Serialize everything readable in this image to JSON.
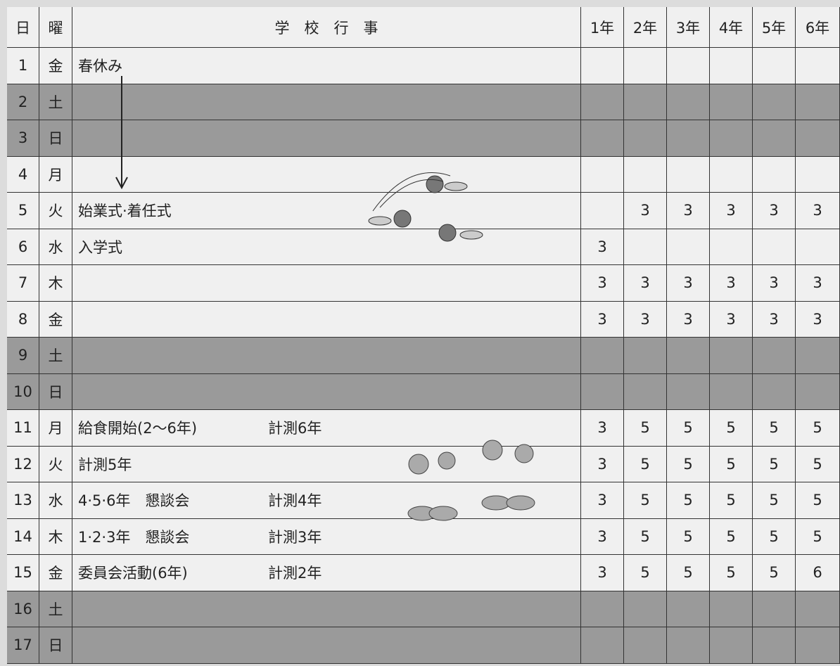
{
  "table": {
    "header": [
      "日",
      "曜",
      "学　校　行　事",
      "1年",
      "2年",
      "3年",
      "4年",
      "5年",
      "6年"
    ],
    "rows": [
      {
        "day": "1",
        "weekday": "金",
        "event": "春休み",
        "note": null,
        "grades": [
          null,
          null,
          null,
          null,
          null,
          null
        ],
        "shaded": false
      },
      {
        "day": "2",
        "weekday": "土",
        "event": null,
        "note": null,
        "grades": [
          null,
          null,
          null,
          null,
          null,
          null
        ],
        "shaded": true
      },
      {
        "day": "3",
        "weekday": "日",
        "event": null,
        "note": null,
        "grades": [
          null,
          null,
          null,
          null,
          null,
          null
        ],
        "shaded": true
      },
      {
        "day": "4",
        "weekday": "月",
        "event": null,
        "note": null,
        "grades": [
          null,
          null,
          null,
          null,
          null,
          null
        ],
        "shaded": false
      },
      {
        "day": "5",
        "weekday": "火",
        "event": "始業式·着任式",
        "note": null,
        "grades": [
          null,
          3,
          3,
          3,
          3,
          3
        ],
        "shaded": false
      },
      {
        "day": "6",
        "weekday": "水",
        "event": "入学式",
        "note": null,
        "grades": [
          3,
          null,
          null,
          null,
          null,
          null
        ],
        "shaded": false
      },
      {
        "day": "7",
        "weekday": "木",
        "event": null,
        "note": null,
        "grades": [
          3,
          3,
          3,
          3,
          3,
          3
        ],
        "shaded": false
      },
      {
        "day": "8",
        "weekday": "金",
        "event": null,
        "note": null,
        "grades": [
          3,
          3,
          3,
          3,
          3,
          3
        ],
        "shaded": false
      },
      {
        "day": "9",
        "weekday": "土",
        "event": null,
        "note": null,
        "grades": [
          null,
          null,
          null,
          null,
          null,
          null
        ],
        "shaded": true
      },
      {
        "day": "10",
        "weekday": "日",
        "event": null,
        "note": null,
        "grades": [
          null,
          null,
          null,
          null,
          null,
          null
        ],
        "shaded": true
      },
      {
        "day": "11",
        "weekday": "月",
        "event": "給食開始(2〜6年)",
        "note": "計測6年",
        "grades": [
          3,
          5,
          5,
          5,
          5,
          5
        ],
        "shaded": false
      },
      {
        "day": "12",
        "weekday": "火",
        "event": "計測5年",
        "note": null,
        "grades": [
          3,
          5,
          5,
          5,
          5,
          5
        ],
        "shaded": false
      },
      {
        "day": "13",
        "weekday": "水",
        "event": "4·5·6年　懇談会",
        "note": "計測4年",
        "grades": [
          3,
          5,
          5,
          5,
          5,
          5
        ],
        "shaded": false
      },
      {
        "day": "14",
        "weekday": "木",
        "event": "1·2·3年　懇談会",
        "note": "計測3年",
        "grades": [
          3,
          5,
          5,
          5,
          5,
          5
        ],
        "shaded": false
      },
      {
        "day": "15",
        "weekday": "金",
        "event": "委員会活動(6年)",
        "note": "計測2年",
        "grades": [
          3,
          5,
          5,
          5,
          5,
          6
        ],
        "shaded": false
      },
      {
        "day": "16",
        "weekday": "土",
        "event": null,
        "note": null,
        "grades": [
          null,
          null,
          null,
          null,
          null,
          null
        ],
        "shaded": true
      },
      {
        "day": "17",
        "weekday": "日",
        "event": null,
        "note": null,
        "grades": [
          null,
          null,
          null,
          null,
          null,
          null
        ],
        "shaded": true
      }
    ]
  }
}
